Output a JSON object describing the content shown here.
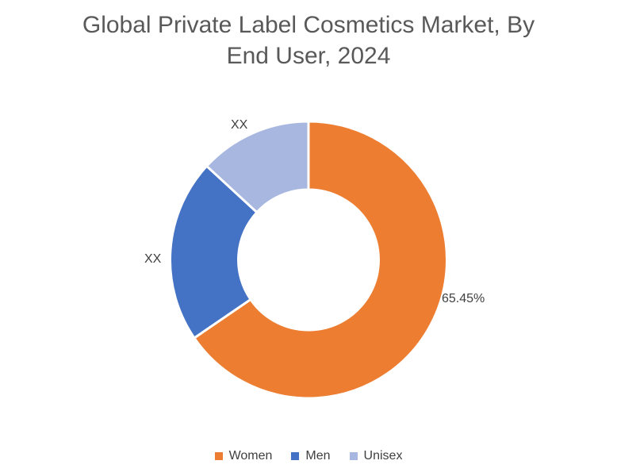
{
  "chart_data": {
    "type": "pie",
    "subtype": "donut",
    "title": "Global Private Label Cosmetics Market, By End User, 2024",
    "start_angle_deg": 0,
    "direction": "clockwise",
    "inner_radius_ratio": 0.507,
    "segments": [
      {
        "name": "Women",
        "value": 65.45,
        "data_label": "65.45%",
        "color": "#ED7D31"
      },
      {
        "name": "Men",
        "value": 21.39,
        "data_label": "XX",
        "color": "#4472C4"
      },
      {
        "name": "Unisex",
        "value": 13.16,
        "data_label": "XX",
        "color": "#A8B7E0"
      }
    ],
    "legend": {
      "position": "bottom",
      "entries": [
        "Women",
        "Men",
        "Unisex"
      ]
    }
  },
  "colors": {
    "title_text": "#595959",
    "data_label_text": "#404040",
    "legend_text": "#404040",
    "background": "#FFFFFF",
    "segment_border": "#FFFFFF"
  }
}
